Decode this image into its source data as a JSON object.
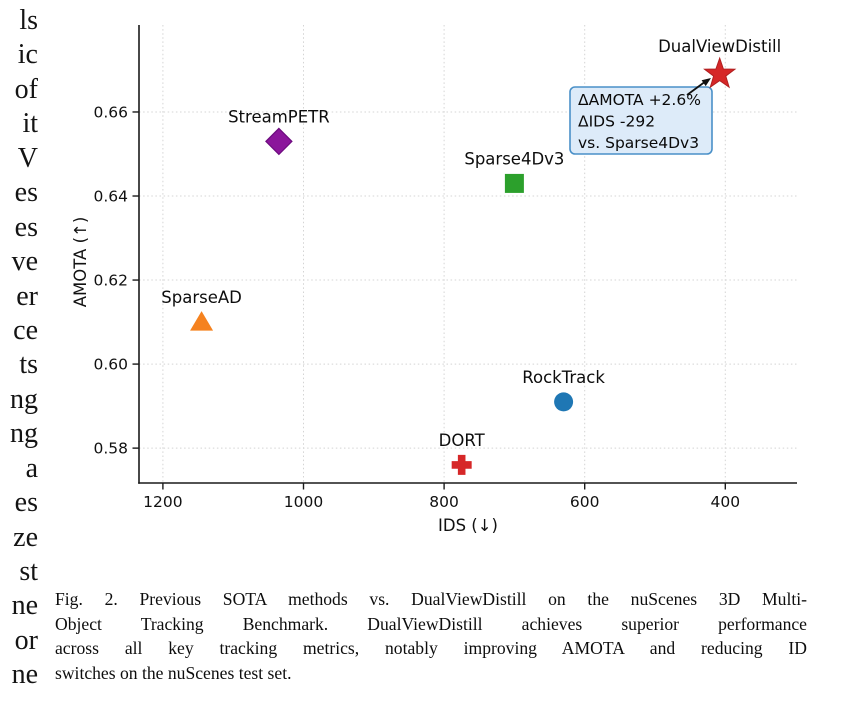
{
  "figure": {
    "left_column_fragments": [
      "ls",
      "ic",
      "of",
      "it",
      "V",
      "es",
      "es",
      "ve",
      "er",
      "ce",
      "ts",
      "ng",
      "ng",
      "a",
      "es",
      "ze",
      "st",
      "ne",
      "or",
      "ne"
    ]
  },
  "chart_data": {
    "type": "scatter",
    "xlabel": "IDS (↓)",
    "ylabel": "AMOTA (↑)",
    "x_axis_reversed": true,
    "xlim": [
      1234,
      298
    ],
    "ylim": [
      0.5717,
      0.6807
    ],
    "grid": "dotted",
    "x_ticks": [
      {
        "value": 1200,
        "label": "1200"
      },
      {
        "value": 1000,
        "label": "1000"
      },
      {
        "value": 800,
        "label": "800"
      },
      {
        "value": 600,
        "label": "600"
      },
      {
        "value": 400,
        "label": "400"
      }
    ],
    "y_ticks": [
      {
        "value": 0.66,
        "label": "0.66"
      },
      {
        "value": 0.64,
        "label": "0.64"
      },
      {
        "value": 0.62,
        "label": "0.62"
      },
      {
        "value": 0.6,
        "label": "0.60"
      },
      {
        "value": 0.58,
        "label": "0.58"
      }
    ],
    "points": [
      {
        "label": "StreamPETR",
        "ids": 1035,
        "amota": 0.653,
        "marker": "diamond",
        "color": "#8b169b",
        "edge": "#6d0b7f"
      },
      {
        "label": "SparseAD",
        "ids": 1145,
        "amota": 0.61,
        "marker": "triangle",
        "color": "#f5821f",
        "edge": "#f5821f"
      },
      {
        "label": "Sparse4Dv3",
        "ids": 700,
        "amota": 0.643,
        "marker": "square",
        "color": "#2ca02c",
        "edge": "#2ca02c"
      },
      {
        "label": "RockTrack",
        "ids": 630,
        "amota": 0.591,
        "marker": "circle",
        "color": "#1f77b4",
        "edge": "#1f77b4"
      },
      {
        "label": "DORT",
        "ids": 775,
        "amota": 0.576,
        "marker": "plus",
        "color": "#d62728",
        "edge": "#d62728"
      },
      {
        "label": "DualViewDistill",
        "ids": 408,
        "amota": 0.669,
        "marker": "star",
        "color": "#d62728",
        "edge": "#b01f20"
      }
    ],
    "annotation": {
      "lines": [
        "ΔAMOTA +2.6%",
        "ΔIDS -292",
        "vs. Sparse4Dv3"
      ],
      "target": "DualViewDistill",
      "fill_color": "#ddebf9",
      "border_color": "#4a90c8"
    }
  },
  "caption": {
    "lines": [
      "Fig. 2.   Previous SOTA methods vs. DualViewDistill on the nuScenes 3D Multi-",
      "Object Tracking Benchmark. DualViewDistill achieves superior performance",
      "across all key tracking metrics, notably improving AMOTA and reducing ID",
      "switches on the nuScenes test set."
    ]
  }
}
